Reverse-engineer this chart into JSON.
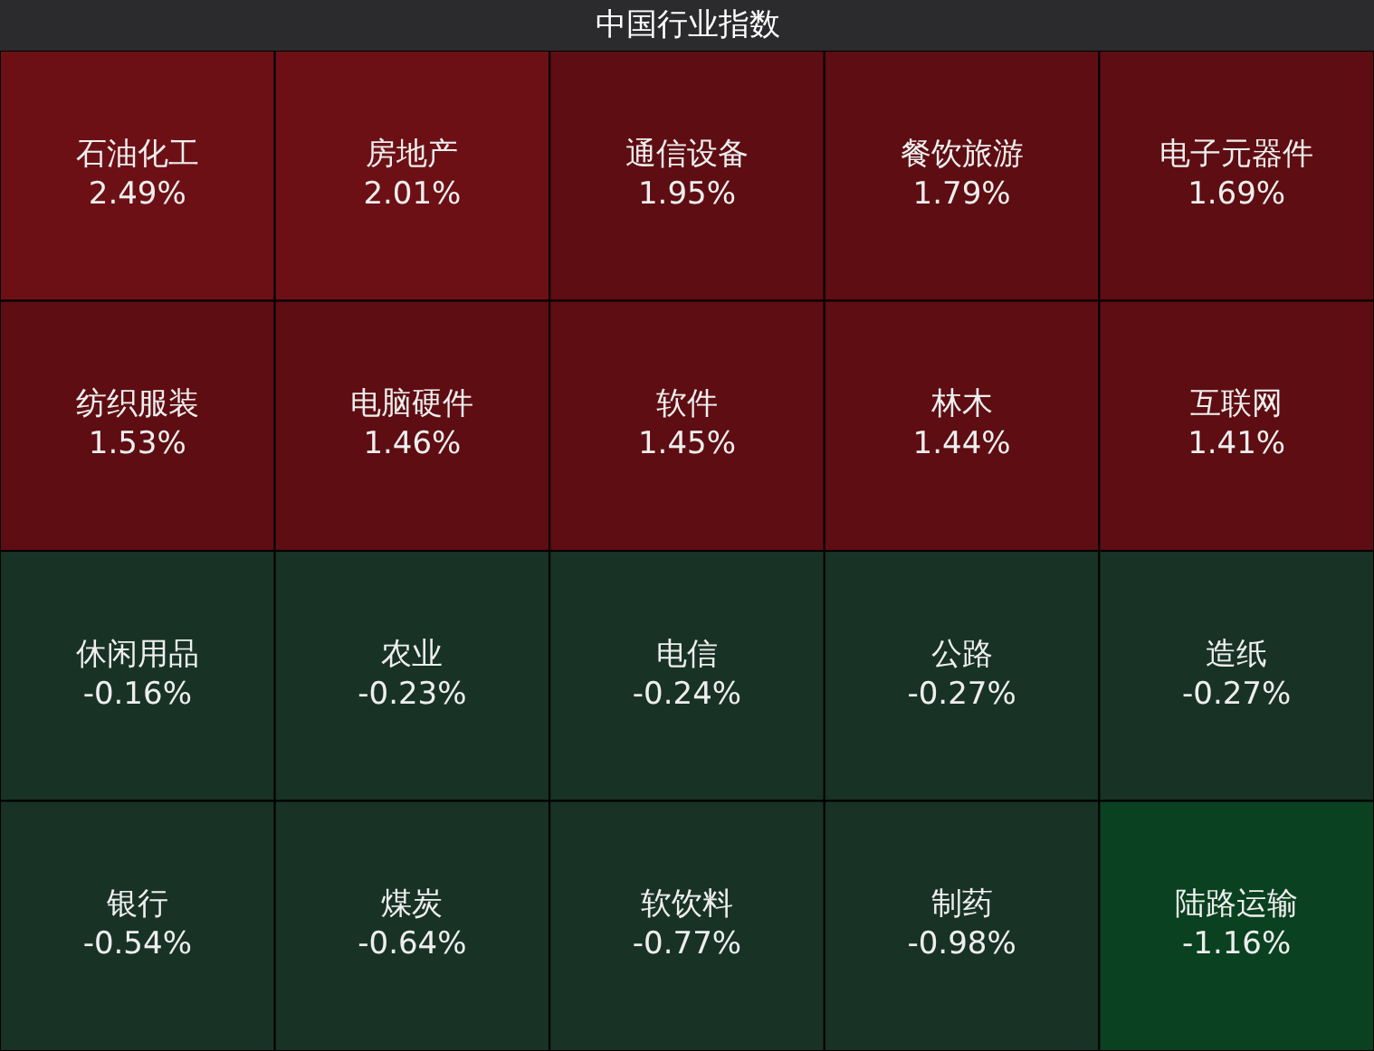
{
  "chart_data": {
    "type": "other",
    "title": "中国行业指数",
    "categories": [
      "石油化工",
      "房地产",
      "通信设备",
      "餐饮旅游",
      "电子元器件",
      "纺织服装",
      "电脑硬件",
      "软件",
      "林木",
      "互联网",
      "休闲用品",
      "农业",
      "电信",
      "公路",
      "造纸",
      "银行",
      "煤炭",
      "软饮料",
      "制药",
      "陆路运输"
    ],
    "values": [
      2.49,
      2.01,
      1.95,
      1.79,
      1.69,
      1.53,
      1.46,
      1.45,
      1.44,
      1.41,
      -0.16,
      -0.23,
      -0.24,
      -0.27,
      -0.27,
      -0.54,
      -0.64,
      -0.77,
      -0.98,
      -1.16
    ],
    "value_labels": [
      "2.49%",
      "2.01%",
      "1.95%",
      "1.79%",
      "1.69%",
      "1.53%",
      "1.46%",
      "1.45%",
      "1.44%",
      "1.41%",
      "-0.16%",
      "-0.23%",
      "-0.24%",
      "-0.27%",
      "-0.27%",
      "-0.54%",
      "-0.64%",
      "-0.77%",
      "-0.98%",
      "-1.16%"
    ],
    "colors": [
      "#6d1015",
      "#6d1015",
      "#5e0d12",
      "#5e0d12",
      "#5e0d12",
      "#5e0d12",
      "#5e0d12",
      "#5e0d12",
      "#5e0d12",
      "#5e0d12",
      "#183226",
      "#183226",
      "#183226",
      "#183226",
      "#183226",
      "#183226",
      "#183226",
      "#183226",
      "#183226",
      "#0a4120"
    ]
  }
}
